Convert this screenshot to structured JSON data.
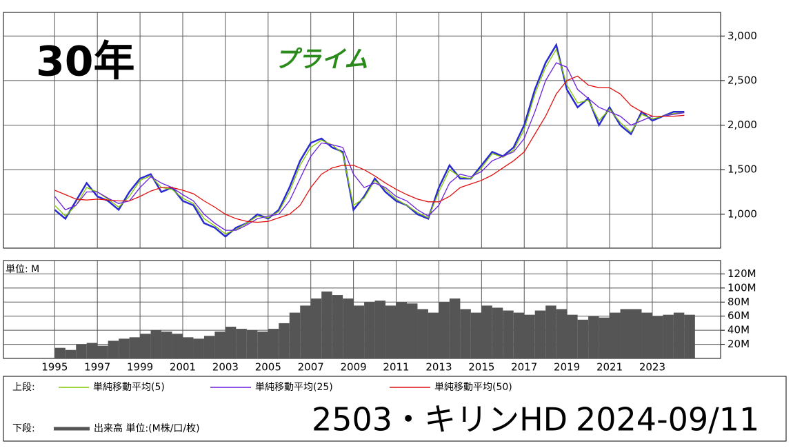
{
  "chart_data": [
    {
      "type": "line",
      "period_label": "30年",
      "market_label": "プライム",
      "legend_group": "上段:",
      "x": [
        1995,
        1995.5,
        1996,
        1996.5,
        1997,
        1997.5,
        1998,
        1998.5,
        1999,
        1999.5,
        2000,
        2000.5,
        2001,
        2001.5,
        2002,
        2002.5,
        2003,
        2003.5,
        2004,
        2004.5,
        2005,
        2005.5,
        2006,
        2006.5,
        2007,
        2007.5,
        2008,
        2008.5,
        2009,
        2009.5,
        2010,
        2010.5,
        2011,
        2011.5,
        2012,
        2012.5,
        2013,
        2013.5,
        2014,
        2014.5,
        2015,
        2015.5,
        2016,
        2016.5,
        2017,
        2017.5,
        2018,
        2018.5,
        2019,
        2019.5,
        2020,
        2020.5,
        2021,
        2021.5,
        2022,
        2022.5,
        2023,
        2023.5,
        2024,
        2024.5
      ],
      "xlim": [
        1992.6,
        2026.2
      ],
      "ylim": [
        620,
        3265
      ],
      "yticks": [
        {
          "value": 1000,
          "label": "1,000"
        },
        {
          "value": 1500,
          "label": "1,500"
        },
        {
          "value": 2000,
          "label": "2,000"
        },
        {
          "value": 2500,
          "label": "2,500"
        },
        {
          "value": 3000,
          "label": "3,000"
        }
      ],
      "grid": true,
      "series": [
        {
          "color": "#2a2ad0",
          "values": [
            1050,
            950,
            1150,
            1350,
            1200,
            1150,
            1050,
            1250,
            1400,
            1450,
            1250,
            1300,
            1150,
            1100,
            900,
            850,
            750,
            850,
            900,
            1000,
            950,
            1050,
            1300,
            1600,
            1800,
            1850,
            1750,
            1700,
            1050,
            1200,
            1400,
            1250,
            1150,
            1100,
            1000,
            950,
            1300,
            1550,
            1400,
            1400,
            1550,
            1700,
            1650,
            1750,
            2000,
            2400,
            2700,
            2900,
            2400,
            2200,
            2300,
            2000,
            2200,
            2000,
            1900,
            2150,
            2050,
            2100,
            2150,
            2150
          ]
        },
        {
          "name": "単純移動平均(5)",
          "color": "#80c800",
          "values": [
            1100,
            980,
            1100,
            1300,
            1250,
            1170,
            1080,
            1200,
            1380,
            1430,
            1300,
            1280,
            1180,
            1120,
            950,
            870,
            780,
            830,
            900,
            980,
            960,
            1030,
            1250,
            1550,
            1750,
            1830,
            1780,
            1680,
            1100,
            1180,
            1380,
            1280,
            1170,
            1100,
            1020,
            960,
            1250,
            1500,
            1420,
            1400,
            1520,
            1680,
            1640,
            1720,
            1950,
            2350,
            2650,
            2850,
            2450,
            2250,
            2280,
            2050,
            2180,
            2030,
            1920,
            2120,
            2070,
            2100,
            2130,
            2140
          ]
        },
        {
          "name": "単純移動平均(25)",
          "color": "#6a1be0",
          "values": [
            1200,
            1050,
            1100,
            1250,
            1250,
            1180,
            1120,
            1150,
            1300,
            1420,
            1350,
            1300,
            1220,
            1150,
            1000,
            900,
            820,
            820,
            880,
            950,
            980,
            1000,
            1150,
            1400,
            1650,
            1800,
            1780,
            1750,
            1450,
            1300,
            1350,
            1300,
            1200,
            1150,
            1050,
            980,
            1100,
            1350,
            1450,
            1420,
            1480,
            1600,
            1650,
            1700,
            1850,
            2150,
            2500,
            2700,
            2650,
            2400,
            2300,
            2200,
            2150,
            2100,
            2000,
            2050,
            2100,
            2100,
            2120,
            2140
          ]
        },
        {
          "name": "単純移動平均(50)",
          "color": "#e01010",
          "values": [
            1270,
            1220,
            1170,
            1160,
            1170,
            1160,
            1150,
            1150,
            1200,
            1260,
            1300,
            1300,
            1270,
            1230,
            1150,
            1080,
            1000,
            950,
            920,
            910,
            920,
            960,
            1000,
            1100,
            1300,
            1450,
            1520,
            1550,
            1550,
            1500,
            1430,
            1350,
            1280,
            1220,
            1170,
            1140,
            1140,
            1200,
            1300,
            1340,
            1380,
            1440,
            1520,
            1600,
            1700,
            1900,
            2100,
            2350,
            2500,
            2550,
            2450,
            2420,
            2420,
            2350,
            2220,
            2150,
            2100,
            2100,
            2100,
            2110
          ]
        }
      ]
    },
    {
      "type": "bar",
      "title": "2503・キリンHD",
      "date": "2024-09/11",
      "unit_label": "単位: M",
      "legend_group": "下段:",
      "x": [
        1995,
        1995.5,
        1996,
        1996.5,
        1997,
        1997.5,
        1998,
        1998.5,
        1999,
        1999.5,
        2000,
        2000.5,
        2001,
        2001.5,
        2002,
        2002.5,
        2003,
        2003.5,
        2004,
        2004.5,
        2005,
        2005.5,
        2006,
        2006.5,
        2007,
        2007.5,
        2008,
        2008.5,
        2009,
        2009.5,
        2010,
        2010.5,
        2011,
        2011.5,
        2012,
        2012.5,
        2013,
        2013.5,
        2014,
        2014.5,
        2015,
        2015.5,
        2016,
        2016.5,
        2017,
        2017.5,
        2018,
        2018.5,
        2019,
        2019.5,
        2020,
        2020.5,
        2021,
        2021.5,
        2022,
        2022.5,
        2023,
        2023.5,
        2024,
        2024.5
      ],
      "xlim": [
        1992.6,
        2026.2
      ],
      "ylim": [
        0,
        139
      ],
      "xticks": [
        1995,
        1997,
        1999,
        2001,
        2003,
        2005,
        2007,
        2009,
        2011,
        2013,
        2015,
        2017,
        2019,
        2021,
        2023
      ],
      "yticks": [
        {
          "value": 20,
          "label": "20M"
        },
        {
          "value": 40,
          "label": "40M"
        },
        {
          "value": 60,
          "label": "60M"
        },
        {
          "value": 80,
          "label": "80M"
        },
        {
          "value": 100,
          "label": "100M"
        },
        {
          "value": 120,
          "label": "120M"
        }
      ],
      "grid": true,
      "series": [
        {
          "name": "出来高 単位:(M株/口/枚)",
          "color": "#555555",
          "values": [
            15,
            12,
            20,
            22,
            18,
            25,
            28,
            30,
            35,
            40,
            38,
            35,
            30,
            28,
            32,
            38,
            45,
            42,
            40,
            38,
            42,
            50,
            65,
            75,
            85,
            95,
            90,
            85,
            75,
            80,
            82,
            75,
            80,
            78,
            70,
            65,
            80,
            85,
            70,
            65,
            75,
            72,
            68,
            65,
            62,
            68,
            75,
            70,
            62,
            55,
            60,
            58,
            65,
            70,
            70,
            65,
            60,
            62,
            65,
            62
          ]
        }
      ]
    }
  ]
}
